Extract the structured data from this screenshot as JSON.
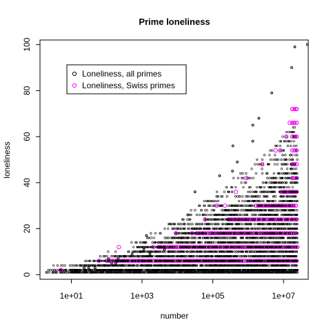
{
  "chart_data": {
    "type": "scatter",
    "title": "Prime loneliness",
    "xlabel": "number",
    "ylabel": "loneliness",
    "x_scale": "log10",
    "xlim": [
      1.3,
      50000000
    ],
    "ylim": [
      -2,
      102
    ],
    "x_ticks": [
      {
        "value": 10,
        "label": "1e+01"
      },
      {
        "value": 1000,
        "label": "1e+03"
      },
      {
        "value": 100000,
        "label": "1e+05"
      },
      {
        "value": 10000000,
        "label": "1e+07"
      }
    ],
    "y_ticks": [
      0,
      20,
      40,
      60,
      80,
      100
    ],
    "grid": false,
    "legend": {
      "placement": "top-left",
      "entries": [
        {
          "label": "Loneliness, all primes",
          "color": "#000000"
        },
        {
          "label": "Loneliness, Swiss primes",
          "color": "#ff00ff"
        }
      ]
    },
    "series": [
      {
        "name": "Loneliness, all primes",
        "color": "#000000",
        "marker": "open-circle",
        "points": [
          [
            2,
            1
          ],
          [
            3,
            1
          ],
          [
            5,
            2
          ],
          [
            7,
            2
          ],
          [
            11,
            2
          ],
          [
            13,
            2
          ],
          [
            23,
            3
          ],
          [
            31,
            3
          ],
          [
            47,
            3
          ],
          [
            89,
            4
          ],
          [
            113,
            7
          ],
          [
            139,
            5
          ],
          [
            181,
            5
          ],
          [
            199,
            6
          ],
          [
            211,
            7
          ],
          [
            293,
            6
          ],
          [
            317,
            8
          ],
          [
            523,
            9
          ],
          [
            887,
            10
          ],
          [
            1129,
            11
          ],
          [
            1327,
            17
          ],
          [
            1669,
            9
          ],
          [
            2477,
            10
          ],
          [
            3137,
            12
          ],
          [
            4297,
            11
          ],
          [
            5591,
            10
          ],
          [
            9551,
            18
          ],
          [
            12853,
            16
          ],
          [
            15683,
            22
          ],
          [
            19609,
            26
          ],
          [
            31397,
            36
          ],
          [
            155921,
            43
          ],
          [
            360653,
            45
          ],
          [
            370261,
            56
          ],
          [
            492113,
            49
          ],
          [
            1349533,
            58
          ],
          [
            1357201,
            65
          ],
          [
            2010733,
            68
          ],
          [
            4652353,
            79
          ],
          [
            17051707,
            90
          ],
          [
            20831323,
            99
          ],
          [
            47326693,
            100
          ]
        ]
      },
      {
        "name": "Loneliness, Swiss primes",
        "color": "#ff00ff",
        "marker": "open-circle",
        "points": [
          [
            5,
            2
          ],
          [
            60,
            6
          ],
          [
            150,
            6
          ],
          [
            220,
            12
          ],
          [
            800,
            6
          ],
          [
            2100,
            12
          ],
          [
            9000,
            18
          ],
          [
            26000,
            18
          ],
          [
            60000,
            24
          ],
          [
            130000,
            30
          ],
          [
            220000,
            30
          ],
          [
            450000,
            36
          ],
          [
            900000,
            42
          ],
          [
            2500000,
            48
          ],
          [
            6000000,
            54
          ],
          [
            8000000,
            54
          ],
          [
            12000000,
            60
          ],
          [
            15000000,
            66
          ],
          [
            20000000,
            66
          ],
          [
            23000000,
            72
          ]
        ]
      }
    ]
  }
}
